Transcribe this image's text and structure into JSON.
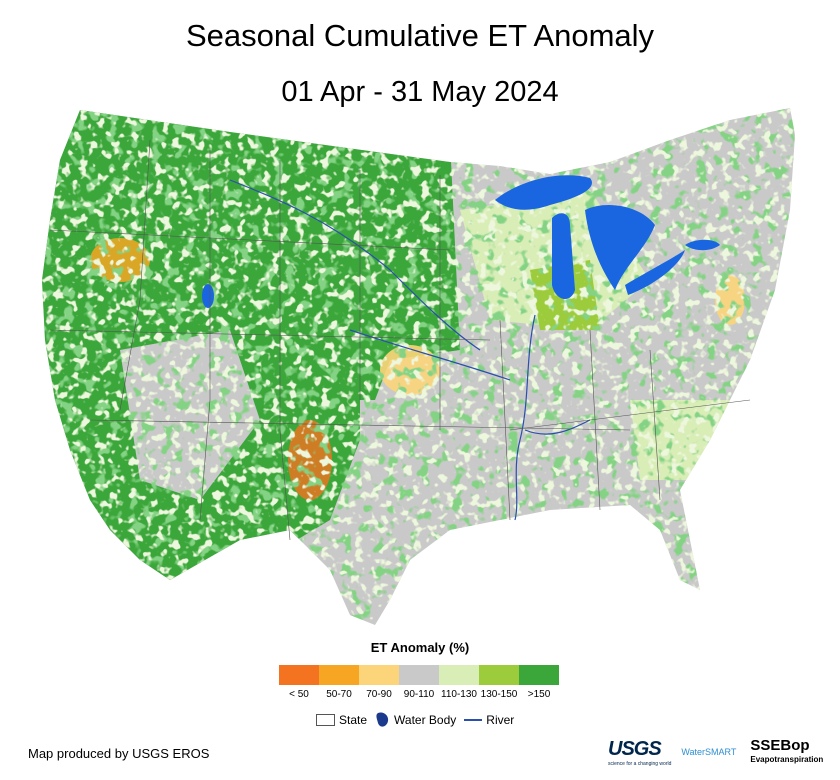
{
  "title": "Seasonal Cumulative ET Anomaly",
  "subtitle": "01 Apr - 31 May 2024",
  "legend": {
    "title": "ET Anomaly (%)",
    "classes": [
      {
        "label": "< 50",
        "color": "#f47320"
      },
      {
        "label": "50-70",
        "color": "#f6a623"
      },
      {
        "label": "70-90",
        "color": "#fcd57a"
      },
      {
        "label": "90-110",
        "color": "#c9c9c9"
      },
      {
        "label": "110-130",
        "color": "#d9edb7"
      },
      {
        "label": "130-150",
        "color": "#9ccb3b"
      },
      {
        "label": ">150",
        "color": "#3ba63a"
      }
    ],
    "keys": {
      "state": "State",
      "water": "Water Body",
      "river": "River"
    }
  },
  "colors": {
    "water": "#1a66e0",
    "river": "#2b4fb0",
    "state_line": "#555555",
    "water_body_symbol": "#1c3a8c"
  },
  "credit": "Map produced by USGS EROS",
  "logos": {
    "usgs": "USGS",
    "usgs_tagline": "science for a changing world",
    "watersmart": "WaterSMART",
    "ssebop": "SSEBop",
    "ssebop_sub": "Evapotranspiration"
  }
}
